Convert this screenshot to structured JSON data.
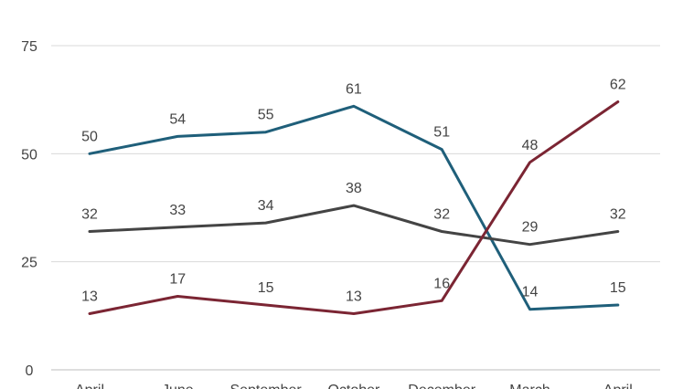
{
  "chart_data": {
    "type": "line",
    "title": "",
    "xlabel": "",
    "ylabel": "",
    "categories": [
      "April",
      "June",
      "September",
      "October",
      "December",
      "March",
      "April"
    ],
    "ylim": [
      0,
      75
    ],
    "yticks": [
      0,
      25,
      50,
      75
    ],
    "grid": true,
    "series": [
      {
        "key": "blue",
        "color": "#1f5f7a",
        "values": [
          50,
          54,
          55,
          61,
          51,
          14,
          15
        ]
      },
      {
        "key": "gray",
        "color": "#444444",
        "values": [
          32,
          33,
          34,
          38,
          32,
          29,
          32
        ]
      },
      {
        "key": "red",
        "color": "#7b2533",
        "values": [
          13,
          17,
          15,
          13,
          16,
          48,
          62
        ]
      }
    ]
  }
}
